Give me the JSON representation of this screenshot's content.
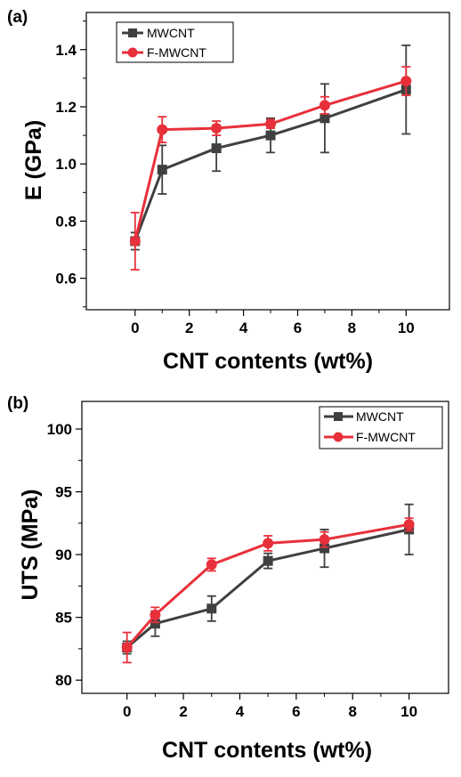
{
  "chart_data": [
    {
      "panel_label": "(a)",
      "type": "line",
      "xlabel": "CNT contents (wt%)",
      "ylabel": "E (GPa)",
      "xlim": [
        -1.8,
        11.6
      ],
      "ylim": [
        0.49,
        1.53
      ],
      "xticks": [
        "0",
        "2",
        "4",
        "6",
        "8",
        "10"
      ],
      "yticks": [
        "0.6",
        "0.8",
        "1.0",
        "1.2",
        "1.4"
      ],
      "legend": "top-left",
      "x": [
        0,
        1,
        3,
        5,
        7,
        10
      ],
      "series": [
        {
          "name": "MWCNT",
          "marker": "square",
          "color": "#404040",
          "values": [
            0.73,
            0.98,
            1.055,
            1.1,
            1.16,
            1.26
          ],
          "errors": [
            0.03,
            0.085,
            0.08,
            0.06,
            0.12,
            0.155
          ]
        },
        {
          "name": "F-MWCNT",
          "marker": "circle",
          "color": "#e8303a",
          "values": [
            0.73,
            1.12,
            1.125,
            1.14,
            1.205,
            1.29
          ],
          "errors": [
            0.1,
            0.045,
            0.025,
            0.015,
            0.03,
            0.05
          ]
        }
      ]
    },
    {
      "panel_label": "(b)",
      "type": "line",
      "xlabel": "CNT contents (wt%)",
      "ylabel": "UTS (MPa)",
      "xlim": [
        -1.6,
        11.4
      ],
      "ylim": [
        78.95,
        102.2
      ],
      "xticks": [
        "0",
        "2",
        "4",
        "6",
        "8",
        "10"
      ],
      "yticks": [
        "80",
        "85",
        "90",
        "95",
        "100"
      ],
      "legend": "top-right",
      "x": [
        0,
        1,
        3,
        5,
        7,
        10
      ],
      "series": [
        {
          "name": "MWCNT",
          "marker": "square",
          "color": "#404040",
          "values": [
            82.6,
            84.5,
            85.7,
            89.5,
            90.5,
            92.0
          ],
          "errors": [
            0.5,
            1.0,
            1.0,
            0.6,
            1.5,
            2.0
          ]
        },
        {
          "name": "F-MWCNT",
          "marker": "circle",
          "color": "#e8303a",
          "values": [
            82.6,
            85.2,
            89.2,
            90.9,
            91.2,
            92.4
          ],
          "errors": [
            1.2,
            0.6,
            0.5,
            0.6,
            0.6,
            0.5
          ]
        }
      ]
    }
  ]
}
